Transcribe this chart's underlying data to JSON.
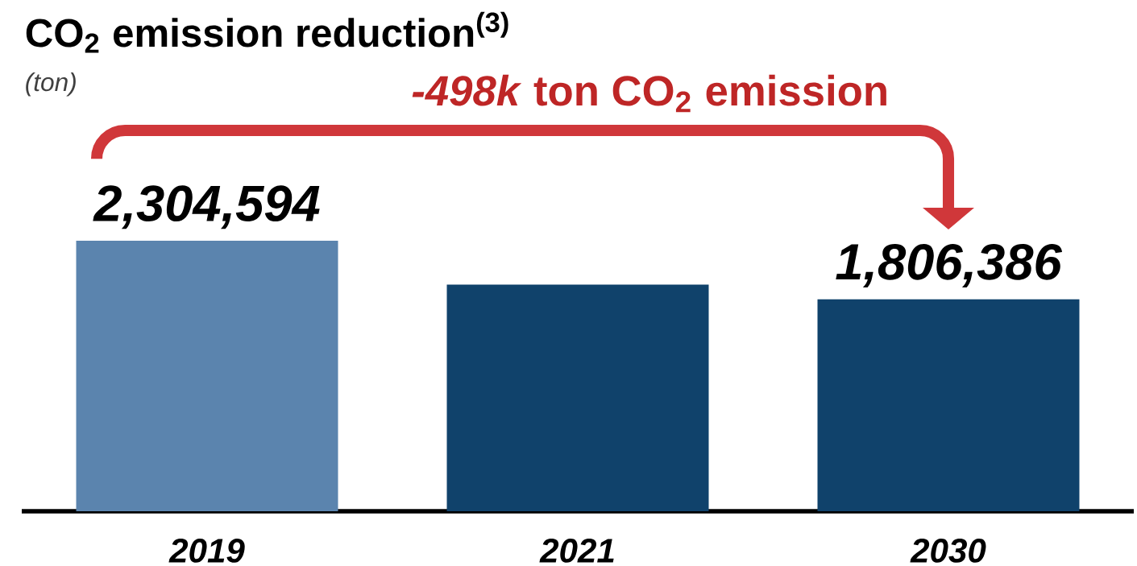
{
  "chart_data": {
    "type": "bar",
    "title": "CO$_{2}$ emission reduction$^{(3)}$",
    "subtitle": "(ton)",
    "categories": [
      "2019",
      "2021",
      "2030"
    ],
    "values": [
      2304594,
      1930000,
      1806386
    ],
    "colors": [
      "#5b84ae",
      "#10426b",
      "#10426b"
    ],
    "value_labels": [
      "2,304,594",
      null,
      "1,806,386"
    ],
    "tick_labels": "x",
    "grid": false,
    "annotations": [
      "*-498k* ton CO$_{2}$ emission"
    ]
  }
}
